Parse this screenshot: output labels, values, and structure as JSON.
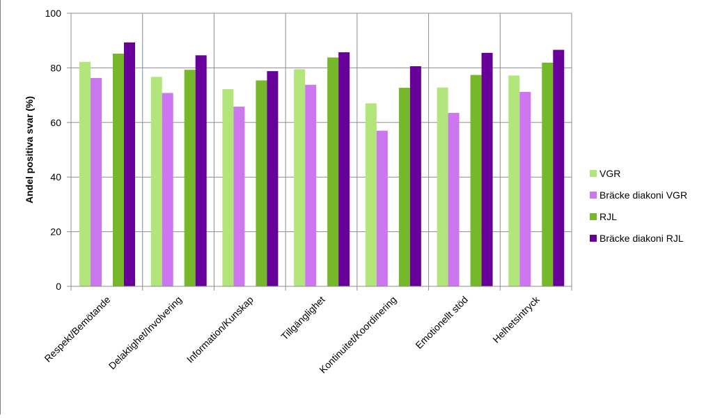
{
  "chart_data": {
    "type": "bar",
    "title": "",
    "xlabel": "",
    "ylabel": "Andel positiva svar (%)",
    "ylim": [
      0,
      100
    ],
    "yticks": [
      0,
      20,
      40,
      60,
      80,
      100
    ],
    "grid": true,
    "legend_position": "right",
    "categories": [
      "Respekt/Bemötande",
      "Delaktighet/Involvering",
      "Information/Kunskap",
      "Tillgänglighet",
      "Kontinuitet/Koordinering",
      "Emotionellt stöd",
      "Helhetsintryck"
    ],
    "series": [
      {
        "name": "VGR",
        "color": "#b3e67a",
        "values": [
          82.2,
          76.7,
          72.2,
          79.5,
          67.0,
          72.8,
          77.2
        ]
      },
      {
        "name": "Bräcke diakoni VGR",
        "color": "#cc77f0",
        "values": [
          76.3,
          70.8,
          65.8,
          73.8,
          57.0,
          63.5,
          71.2
        ]
      },
      {
        "name": "RJL",
        "color": "#76b82a",
        "values": [
          85.2,
          79.3,
          75.4,
          83.8,
          72.7,
          77.4,
          81.9
        ]
      },
      {
        "name": "Bräcke diakoni RJL",
        "color": "#660099",
        "values": [
          89.3,
          84.6,
          78.8,
          85.7,
          80.6,
          85.5,
          86.6
        ]
      }
    ]
  }
}
